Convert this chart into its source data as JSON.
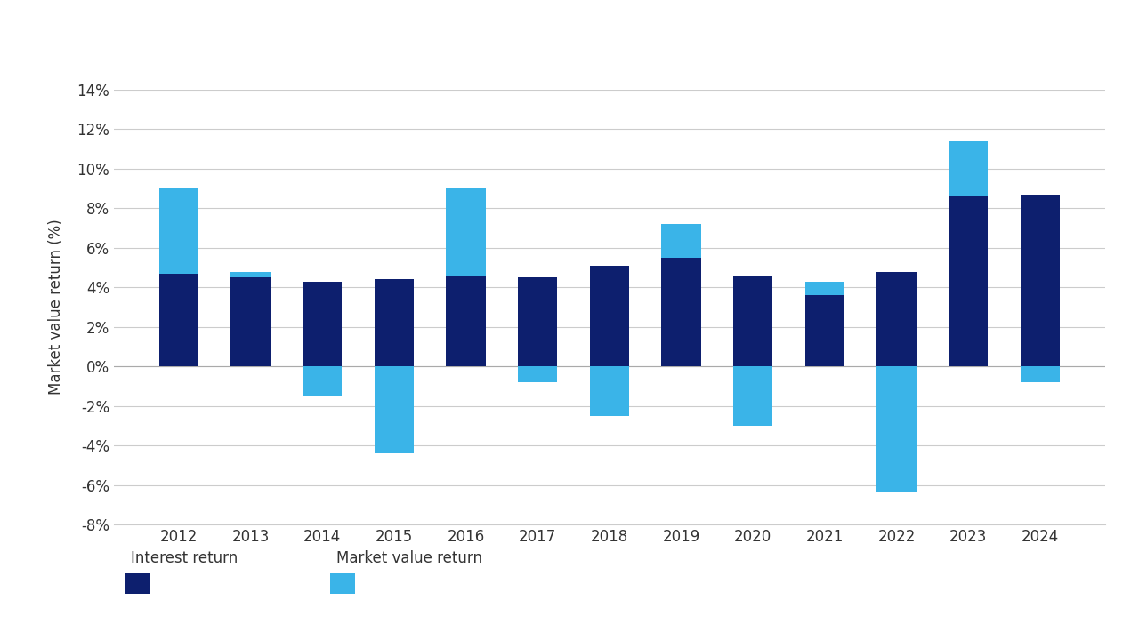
{
  "years": [
    "2012",
    "2013",
    "2014",
    "2015",
    "2016",
    "2017",
    "2018",
    "2019",
    "2020",
    "2021",
    "2022",
    "2023",
    "2024"
  ],
  "interest_return": [
    4.7,
    4.5,
    4.3,
    4.4,
    4.6,
    4.5,
    5.1,
    5.5,
    4.6,
    3.6,
    4.8,
    8.6,
    8.7
  ],
  "market_value_return": [
    4.3,
    0.3,
    -1.5,
    -4.4,
    4.4,
    -0.8,
    -2.5,
    1.7,
    -3.0,
    0.7,
    -6.3,
    2.8,
    -0.8
  ],
  "interest_color": "#0d1f6e",
  "market_value_color": "#3ab4e8",
  "ylabel": "Market value return (%)",
  "ylim": [
    -8,
    14
  ],
  "yticks": [
    -8,
    -6,
    -4,
    -2,
    0,
    2,
    4,
    6,
    8,
    10,
    12,
    14
  ],
  "legend_interest": "Interest return",
  "legend_market": "Market value return",
  "background_color": "#ffffff",
  "grid_color": "#cccccc",
  "bar_width": 0.55
}
